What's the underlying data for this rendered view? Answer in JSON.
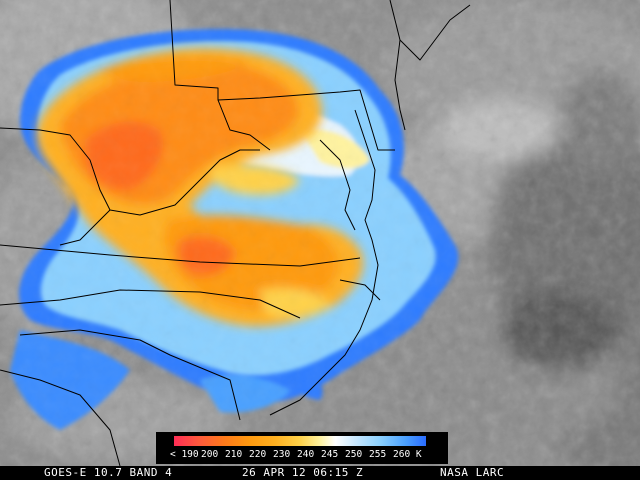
{
  "colorbar": {
    "labels": [
      "< 190",
      "200",
      "210",
      "220",
      "230",
      "240",
      "245",
      "250",
      "255",
      "260 K"
    ]
  },
  "footer": {
    "satellite": "GOES-E 10.7 BAND 4",
    "date": "26 APR 12 06:15 Z",
    "credit": "NASA LARC"
  }
}
